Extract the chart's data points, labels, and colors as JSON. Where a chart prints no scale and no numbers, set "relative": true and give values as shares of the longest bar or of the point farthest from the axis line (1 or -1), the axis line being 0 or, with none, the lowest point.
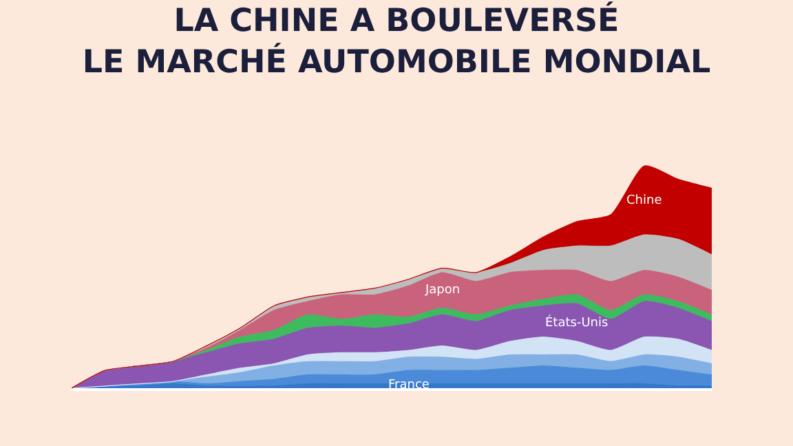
{
  "chart_data": {
    "type": "area",
    "stacked": true,
    "relative": true,
    "legend": false,
    "tick_labels": false,
    "title": "LA CHINE A BOULEVERSÉ\nLE MARCHÉ AUTOMOBILE MONDIAL",
    "categories": [
      null,
      null,
      null,
      null,
      null,
      null,
      null,
      null,
      null,
      null,
      null,
      null,
      null,
      null,
      null,
      null,
      null,
      null,
      null,
      null
    ],
    "series": [
      {
        "name": "France",
        "color": "#3677c9",
        "values": [
          0,
          0.01,
          0.01,
          0.02,
          0.01,
          0.01,
          0.01,
          0.02,
          0.02,
          0.02,
          0.02,
          0.02,
          0.02,
          0.02,
          0.02,
          0.02,
          0.02,
          0.02,
          0.01,
          0.01
        ]
      },
      {
        "color": "#4a8ad8",
        "values": [
          0,
          0,
          0.01,
          0.01,
          0.01,
          0.02,
          0.03,
          0.04,
          0.04,
          0.04,
          0.06,
          0.06,
          0.06,
          0.07,
          0.08,
          0.07,
          0.06,
          0.08,
          0.07,
          0.05
        ]
      },
      {
        "color": "#82b0e4",
        "values": [
          0,
          0,
          0,
          0,
          0.03,
          0.04,
          0.06,
          0.06,
          0.06,
          0.06,
          0.06,
          0.06,
          0.05,
          0.06,
          0.05,
          0.06,
          0.04,
          0.05,
          0.06,
          0.05
        ]
      },
      {
        "color": "#d3e3f6",
        "values": [
          0,
          0,
          0,
          0,
          0.01,
          0.02,
          0.01,
          0.03,
          0.04,
          0.04,
          0.03,
          0.05,
          0.04,
          0.06,
          0.08,
          0.06,
          0.05,
          0.08,
          0.08,
          0.06
        ]
      },
      {
        "name": "États-Unis",
        "color": "#8a56b2",
        "values": [
          0,
          0.07,
          0.08,
          0.09,
          0.1,
          0.11,
          0.11,
          0.12,
          0.12,
          0.11,
          0.12,
          0.14,
          0.13,
          0.14,
          0.14,
          0.17,
          0.14,
          0.16,
          0.14,
          0.13
        ]
      },
      {
        "color": "#3dbb5e",
        "values": [
          0,
          0,
          0,
          0,
          0.01,
          0.03,
          0.04,
          0.06,
          0.03,
          0.06,
          0.03,
          0.03,
          0.03,
          0.02,
          0.03,
          0.04,
          0.04,
          0.03,
          0.03,
          0.03
        ]
      },
      {
        "name": "Japon",
        "color": "#c9637c",
        "values": [
          0,
          0,
          0,
          0,
          0.01,
          0.03,
          0.09,
          0.06,
          0.11,
          0.09,
          0.14,
          0.16,
          0.15,
          0.15,
          0.13,
          0.11,
          0.13,
          0.11,
          0.11,
          0.11
        ]
      },
      {
        "color": "#bdbdbd",
        "values": [
          0,
          0,
          0,
          0,
          0.01,
          0.01,
          0.02,
          0.02,
          0.01,
          0.03,
          0.03,
          0.02,
          0.04,
          0.04,
          0.09,
          0.11,
          0.16,
          0.16,
          0.17,
          0.16
        ]
      },
      {
        "name": "Chine",
        "color": "#c20000",
        "values": [
          0,
          0,
          0,
          0,
          0,
          0,
          0,
          0,
          0,
          0,
          0,
          0,
          0,
          0.03,
          0.06,
          0.11,
          0.14,
          0.31,
          0.27,
          0.3
        ]
      }
    ]
  }
}
